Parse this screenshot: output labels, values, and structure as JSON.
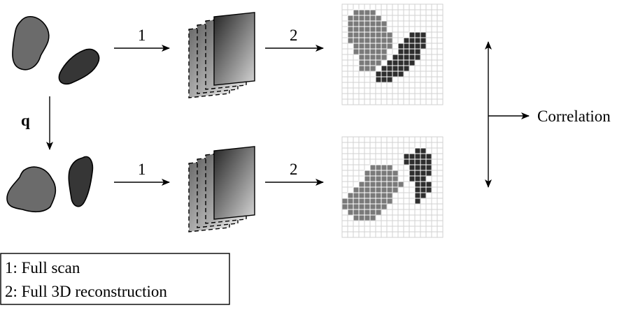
{
  "diagram": {
    "step1_label": "1",
    "step2_label": "2",
    "deformation_label": "q",
    "output_label": "Correlation",
    "legend": {
      "line1": "1: Full scan",
      "line2": "2: Full 3D reconstruction"
    },
    "colors": {
      "light_object": "#6b6b6b",
      "dark_object": "#363636",
      "grid_line": "#d2d2d2",
      "pixel_light": "#7a7a7a",
      "pixel_dark": "#2e2e2e",
      "stroke": "#000000"
    },
    "icons": [
      "object-shapes",
      "projection-stack",
      "voxel-grid",
      "arrow"
    ]
  }
}
